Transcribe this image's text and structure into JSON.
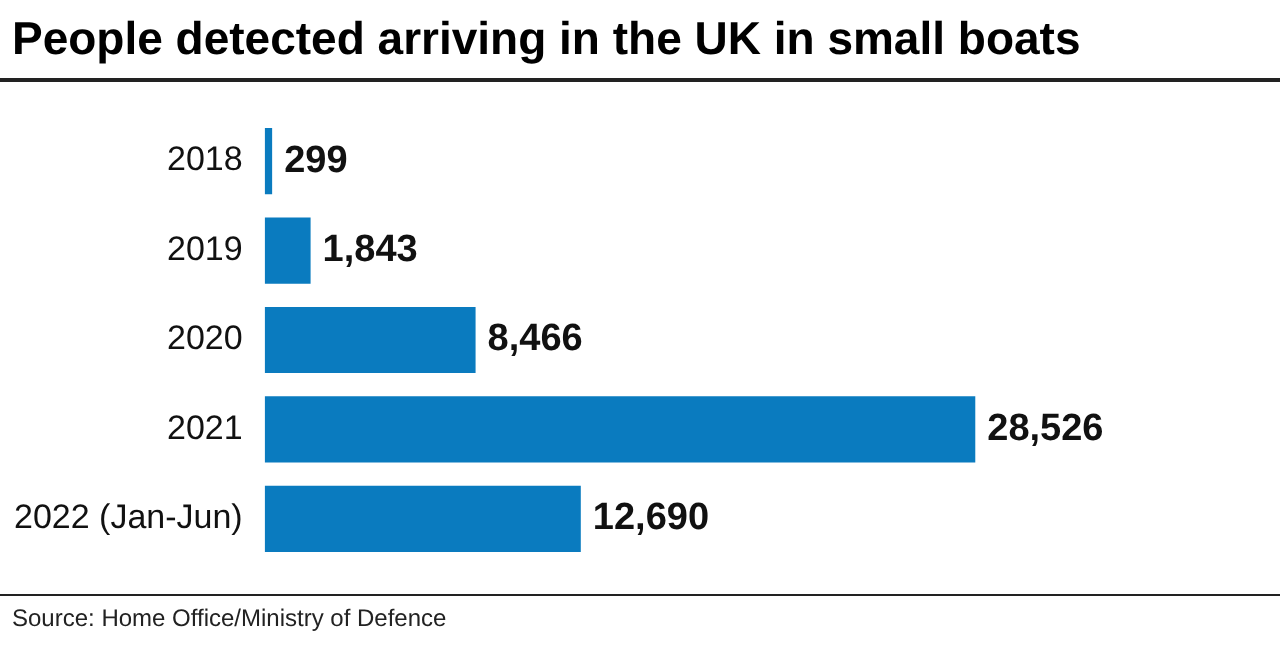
{
  "chart_data": {
    "type": "bar",
    "orientation": "horizontal",
    "title": "People detected arriving in the UK in small boats",
    "categories": [
      "2018",
      "2019",
      "2020",
      "2021",
      "2022 (Jan-Jun)"
    ],
    "values": [
      299,
      1843,
      8466,
      28526,
      12690
    ],
    "value_labels": [
      "299",
      "1,843",
      "8,466",
      "28,526",
      "12,690"
    ],
    "color": "#0a7bbf",
    "legend": false,
    "annotations": [
      "Source: Home Office/Ministry of Defence"
    ]
  }
}
